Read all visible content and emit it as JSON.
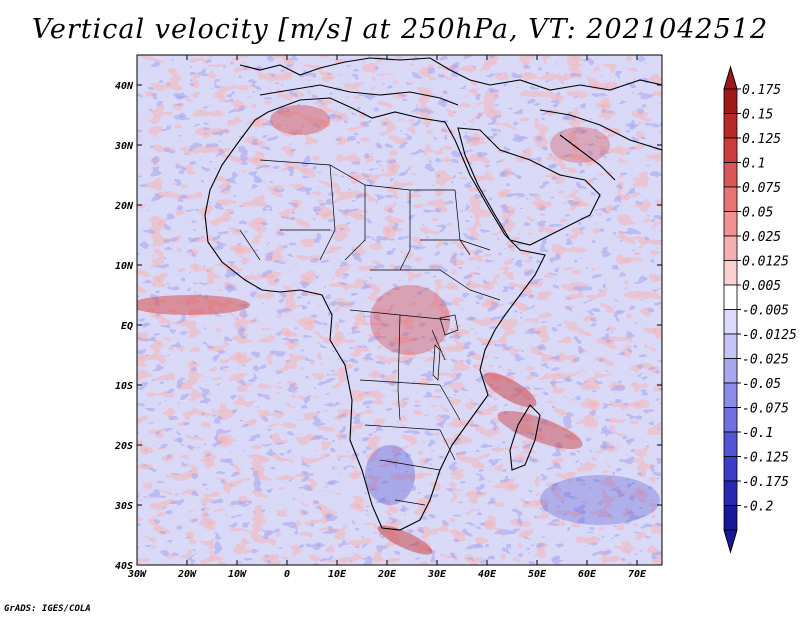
{
  "title": "Vertical velocity [m/s] at 250hPa, VT: 2021042512",
  "credit": "GrADS: IGES/COLA",
  "map": {
    "lon_range": [
      -30,
      75
    ],
    "lat_range": [
      -40,
      45
    ],
    "lon_ticks": [
      "30W",
      "20W",
      "10W",
      "0",
      "10E",
      "20E",
      "30E",
      "40E",
      "50E",
      "60E",
      "70E"
    ],
    "lat_ticks": [
      "40N",
      "30N",
      "20N",
      "10N",
      "EQ",
      "10S",
      "20S",
      "30S",
      "40S"
    ],
    "field": "vertical velocity, 250 hPa"
  },
  "colorbar": {
    "labels": [
      "0.175",
      "0.15",
      "0.125",
      "0.1",
      "0.075",
      "0.05",
      "0.025",
      "0.0125",
      "0.005",
      "-0.005",
      "-0.0125",
      "-0.025",
      "-0.05",
      "-0.075",
      "-0.1",
      "-0.125",
      "-0.175",
      "-0.2"
    ],
    "colors": [
      "#a01818",
      "#b82828",
      "#cc3c3c",
      "#dc5858",
      "#e87474",
      "#f09292",
      "#f6b0b0",
      "#fad0d0",
      "#ffffff",
      "#dcdcfa",
      "#c4c4f6",
      "#a8a8f0",
      "#8c8cea",
      "#7070e2",
      "#5454d8",
      "#3c3cc8",
      "#2828b0",
      "#181898"
    ],
    "top_color": "#a01818",
    "bottom_color": "#181898"
  }
}
